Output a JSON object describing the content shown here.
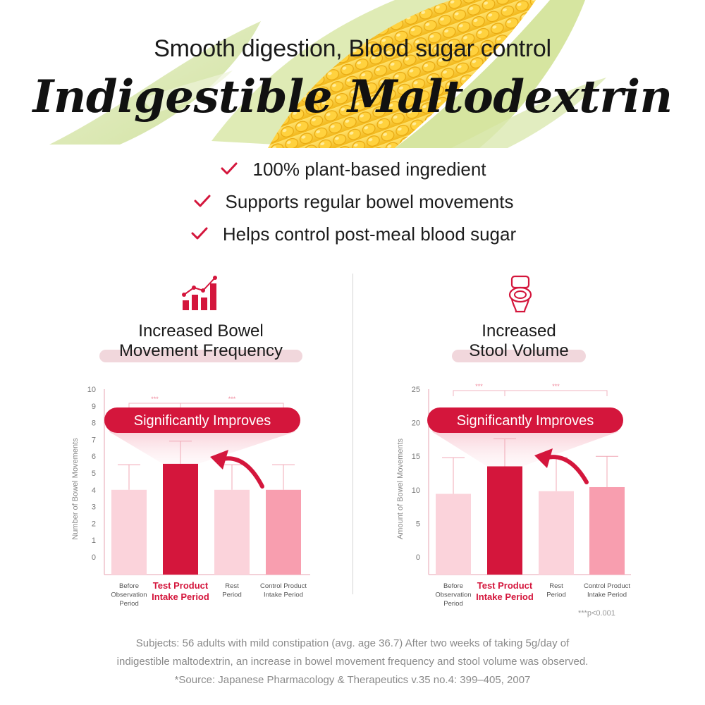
{
  "header": {
    "subtitle": "Smooth digestion, Blood sugar control",
    "title": "Indigestible Maltodextrin"
  },
  "benefits": [
    "100% plant-based ingredient",
    "Supports regular bowel movements",
    "Helps control post-meal blood sugar"
  ],
  "colors": {
    "accent": "#d4163c",
    "bar_light": "#fbd3db",
    "bar_test": "#d4163c",
    "bar_control": "#f89eaf",
    "highlight": "#f1d7dc"
  },
  "panels": [
    {
      "icon": "bar-growth-icon",
      "title_lines": [
        "Increased Bowel",
        "Movement Frequency"
      ]
    },
    {
      "icon": "toilet-icon",
      "title_lines": [
        "Increased",
        "Stool Volume"
      ]
    }
  ],
  "chart_data": [
    {
      "type": "bar",
      "ylabel": "Number of Bowel Movements",
      "ylim": [
        0,
        10
      ],
      "yticks": [
        "0",
        "1",
        "2",
        "3",
        "4",
        "5",
        "6",
        "7",
        "8",
        "9",
        "10"
      ],
      "categories": [
        [
          "Before",
          "Observation",
          "Period"
        ],
        [
          "Test Product",
          "Intake Period"
        ],
        [
          "Rest",
          "Period"
        ],
        [
          "Control Product",
          "Intake Period"
        ]
      ],
      "values": [
        4.0,
        5.55,
        4.0,
        4.0
      ],
      "error": [
        5.5,
        6.9,
        5.5,
        5.5
      ],
      "significance": [
        "***",
        "***"
      ],
      "callout": "Significantly Improves"
    },
    {
      "type": "bar",
      "ylabel": "Amount of Bowel Movements",
      "ylim": [
        0,
        25
      ],
      "yticks": [
        "0",
        "5",
        "10",
        "15",
        "20",
        "25"
      ],
      "categories": [
        [
          "Before",
          "Observation",
          "Period"
        ],
        [
          "Test Product",
          "Intake Period"
        ],
        [
          "Rest",
          "Period"
        ],
        [
          "Control Product",
          "Intake Period"
        ]
      ],
      "values": [
        9.4,
        13.5,
        9.8,
        10.4
      ],
      "error": [
        14.8,
        17.6,
        14.8,
        15.0
      ],
      "significance": [
        "***",
        "***"
      ],
      "callout": "Significantly Improves"
    }
  ],
  "p_value_note": "***p<0.001",
  "footer": [
    "Subjects: 56 adults with mild constipation (avg. age 36.7) After two weeks of taking 5g/day of",
    "indigestible maltodextrin, an increase in bowel movement frequency and stool volume was observed.",
    "*Source: Japanese Pharmacology & Therapeutics v.35 no.4: 399–405, 2007"
  ]
}
